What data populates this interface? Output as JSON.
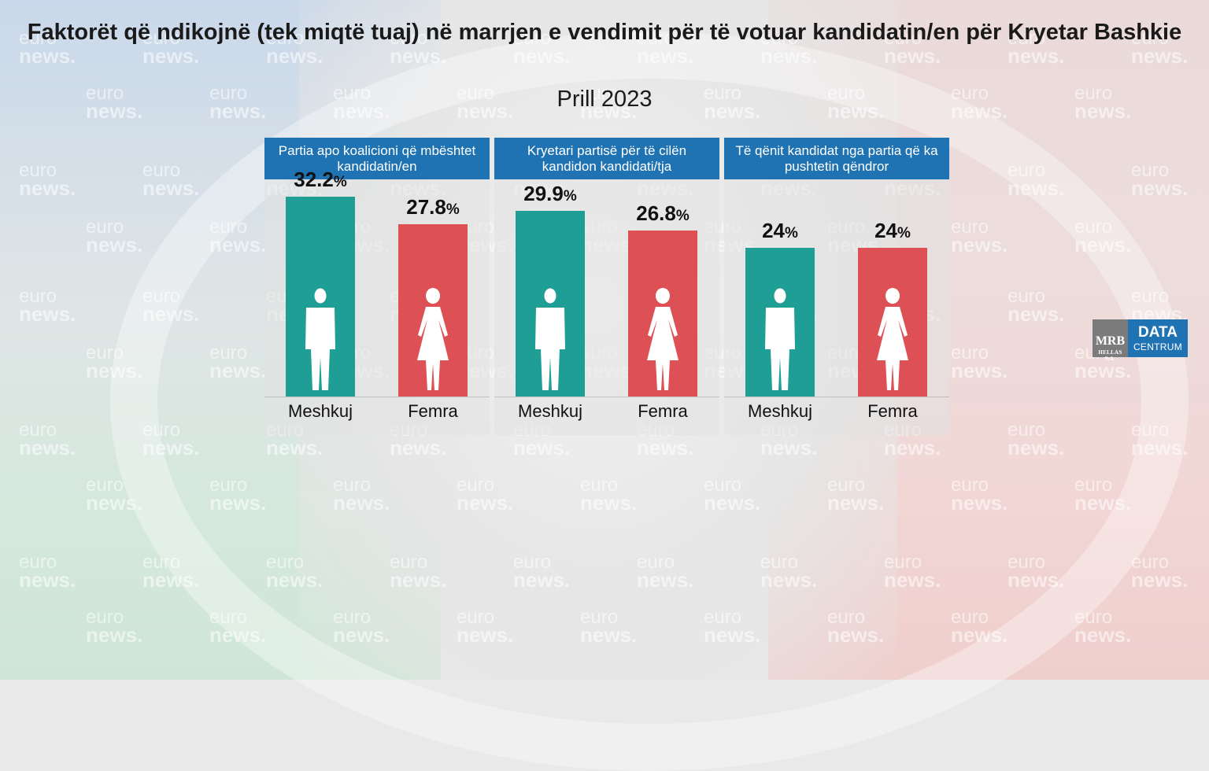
{
  "title": "Faktorët që ndikojnë (tek miqtë tuaj) në marrjen e vendimit për të votuar kandidatin/en për Kryetar Bashkie",
  "subtitle": "Prill 2023",
  "watermark": {
    "line1": "euro",
    "line2": "news."
  },
  "logo": {
    "mrb": "MRB",
    "mrb_sub": "HELLAS S.A.",
    "data": "DATA",
    "centrum": "CENTRUM"
  },
  "colors": {
    "male": "#1e9e94",
    "female": "#dd5055",
    "header": "#1f73b2"
  },
  "chart_data": {
    "type": "bar",
    "title": "Faktorët që ndikojnë (tek miqtë tuaj) në marrjen e vendimit për të votuar kandidatin/en për Kryetar Bashkie",
    "subtitle": "Prill 2023",
    "unit": "%",
    "ylim": [
      0,
      35
    ],
    "grid": false,
    "panels": [
      {
        "header": "Partia apo koalicioni që mbështet kandidatin/en",
        "categories": [
          "Meshkuj",
          "Femra"
        ],
        "values": [
          32.2,
          27.8
        ],
        "labels": [
          "32.2",
          "27.8"
        ]
      },
      {
        "header": "Kryetari partisë për të cilën kandidon kandidati/tja",
        "categories": [
          "Meshkuj",
          "Femra"
        ],
        "values": [
          29.9,
          26.8
        ],
        "labels": [
          "29.9",
          "26.8"
        ]
      },
      {
        "header": "Të qënit kandidat nga partia që ka pushtetin qëndror",
        "categories": [
          "Meshkuj",
          "Femra"
        ],
        "values": [
          24,
          24
        ],
        "labels": [
          "24",
          "24"
        ]
      }
    ]
  }
}
